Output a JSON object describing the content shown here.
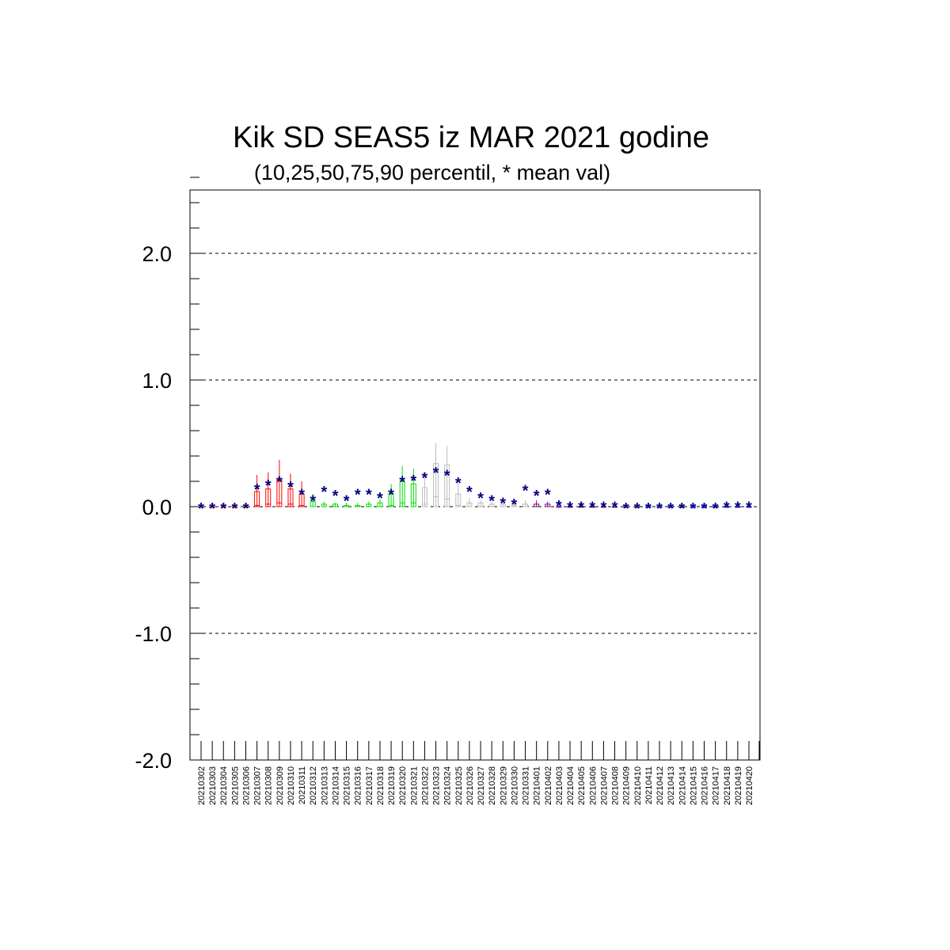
{
  "chart_data": {
    "type": "scatter",
    "title": "Kik SD SEAS5 iz MAR 2021 godine",
    "subtitle": "(10,25,50,75,90 percentil, * mean val)",
    "xlabel": "",
    "ylabel": "",
    "ylim": [
      -2.0,
      2.5
    ],
    "yticks": [
      2.0,
      1.0,
      0.0,
      -1.0,
      -2.0
    ],
    "ytick_labels": [
      "2.0",
      "1.0",
      "0.0",
      "-1.0",
      "-2.0"
    ],
    "grid": "horizontal dashed at major ticks",
    "categories": [
      "20210302",
      "20210303",
      "20210304",
      "20210305",
      "20210306",
      "20210307",
      "20210308",
      "20210309",
      "20210310",
      "20210311",
      "20210312",
      "20210313",
      "20210314",
      "20210315",
      "20210316",
      "20210317",
      "20210318",
      "20210319",
      "20210320",
      "20210321",
      "20210322",
      "20210323",
      "20210324",
      "20210325",
      "20210326",
      "20210327",
      "20210328",
      "20210329",
      "20210330",
      "20210331",
      "20210401",
      "20210402",
      "20210403",
      "20210404",
      "20210405",
      "20210406",
      "20210407",
      "20210408",
      "20210409",
      "20210410",
      "20210411",
      "20210412",
      "20210413",
      "20210414",
      "20210415",
      "20210416",
      "20210417",
      "20210418",
      "20210419",
      "20210420"
    ],
    "mean_marker": "*",
    "mean_color": "#000080",
    "mean": [
      0,
      0,
      0,
      0,
      0,
      0.15,
      0.18,
      0.21,
      0.17,
      0.11,
      0.06,
      0.13,
      0.1,
      0.06,
      0.11,
      0.11,
      0.08,
      0.11,
      0.21,
      0.22,
      0.24,
      0.28,
      0.26,
      0.2,
      0.13,
      0.08,
      0.06,
      0.04,
      0.03,
      0.14,
      0.1,
      0.11,
      0.02,
      0.01,
      0.01,
      0.01,
      0.01,
      0.01,
      0.0,
      0.0,
      0.0,
      0.0,
      0.0,
      0.0,
      0.0,
      0.0,
      0.0,
      0.01,
      0.01,
      0.01
    ],
    "p90": [
      0,
      0,
      0,
      0,
      0,
      0.25,
      0.27,
      0.37,
      0.26,
      0.2,
      0.1,
      0.04,
      0.03,
      0.03,
      0.03,
      0.04,
      0.06,
      0.18,
      0.32,
      0.3,
      0.27,
      0.5,
      0.48,
      0.18,
      0.07,
      0.05,
      0.04,
      0.03,
      0.03,
      0.05,
      0.05,
      0.04,
      0.01,
      0.01,
      0.01,
      0.01,
      0.01,
      0.0,
      0.0,
      0.0,
      0.0,
      0.0,
      0.0,
      0.0,
      0.0,
      0.0,
      0.0,
      0.0,
      0.0,
      0.0
    ],
    "p75": [
      0,
      0,
      0,
      0,
      0,
      0.12,
      0.14,
      0.22,
      0.14,
      0.1,
      0.04,
      0.02,
      0.02,
      0.01,
      0.01,
      0.02,
      0.03,
      0.1,
      0.2,
      0.18,
      0.15,
      0.34,
      0.33,
      0.1,
      0.03,
      0.03,
      0.02,
      0.02,
      0.01,
      0.02,
      0.02,
      0.02,
      0.0,
      0.0,
      0.0,
      0.0,
      0.0,
      0.0,
      0.0,
      0.0,
      0.0,
      0.0,
      0.0,
      0.0,
      0.0,
      0.0,
      0.0,
      0.0,
      0.0,
      0.0
    ],
    "p50": [
      0,
      0,
      0,
      0,
      0,
      0.01,
      0.02,
      0.03,
      0.02,
      0.01,
      0.0,
      0.0,
      0.0,
      0.0,
      0.0,
      0.0,
      0.0,
      0.01,
      0.03,
      0.03,
      0.02,
      0.08,
      0.06,
      0.01,
      0.0,
      0.0,
      0.0,
      0.0,
      0.0,
      0.0,
      0.0,
      0.0,
      0.0,
      0.0,
      0.0,
      0.0,
      0.0,
      0.0,
      0.0,
      0.0,
      0.0,
      0.0,
      0.0,
      0.0,
      0.0,
      0.0,
      0.0,
      0.0,
      0.0,
      0.0
    ],
    "p25": [
      0,
      0,
      0,
      0,
      0,
      0.0,
      0.0,
      0.0,
      0.0,
      0.0,
      0.0,
      0.0,
      0.0,
      0.0,
      0.0,
      0.0,
      0.0,
      0.0,
      0.0,
      0.0,
      0.0,
      0.0,
      0.0,
      0.0,
      0.0,
      0.0,
      0.0,
      0.0,
      0.0,
      0.0,
      0.0,
      0.0,
      0.0,
      0.0,
      0.0,
      0.0,
      0.0,
      0.0,
      0.0,
      0.0,
      0.0,
      0.0,
      0.0,
      0.0,
      0.0,
      0.0,
      0.0,
      0.0,
      0.0,
      0.0
    ],
    "p10": [
      0,
      0,
      0,
      0,
      0,
      0.0,
      0.0,
      0.0,
      0.0,
      0.0,
      0.0,
      0.0,
      0.0,
      0.0,
      0.0,
      0.0,
      0.0,
      0.0,
      0.0,
      0.0,
      0.0,
      0.0,
      0.0,
      0.0,
      0.0,
      0.0,
      0.0,
      0.0,
      0.0,
      0.0,
      0.0,
      0.0,
      0.0,
      0.0,
      0.0,
      0.0,
      0.0,
      0.0,
      0.0,
      0.0,
      0.0,
      0.0,
      0.0,
      0.0,
      0.0,
      0.0,
      0.0,
      0.0,
      0.0,
      0.0
    ],
    "box_colors": [
      "#ff0000",
      "#ff0000",
      "#ff0000",
      "#ff0000",
      "#ff0000",
      "#ff0000",
      "#ff0000",
      "#ff0000",
      "#ff0000",
      "#ff0000",
      "#00dd00",
      "#00dd00",
      "#00dd00",
      "#00dd00",
      "#00dd00",
      "#00dd00",
      "#00dd00",
      "#00dd00",
      "#00dd00",
      "#00dd00",
      "#bbbbbb",
      "#bbbbbb",
      "#bbbbbb",
      "#bbbbbb",
      "#bbbbbb",
      "#bbbbbb",
      "#bbbbbb",
      "#bbbbbb",
      "#bbbbbb",
      "#bbbbbb",
      "#800080",
      "#800080",
      "#800080",
      "#800080",
      "#800080",
      "#800080",
      "#800080",
      "#800080",
      "#800080",
      "#800080",
      "#0000ff",
      "#0000ff",
      "#0000ff",
      "#0000ff",
      "#0000ff",
      "#0000ff",
      "#0000ff",
      "#0000ff",
      "#0000ff",
      "#0000ff"
    ]
  }
}
